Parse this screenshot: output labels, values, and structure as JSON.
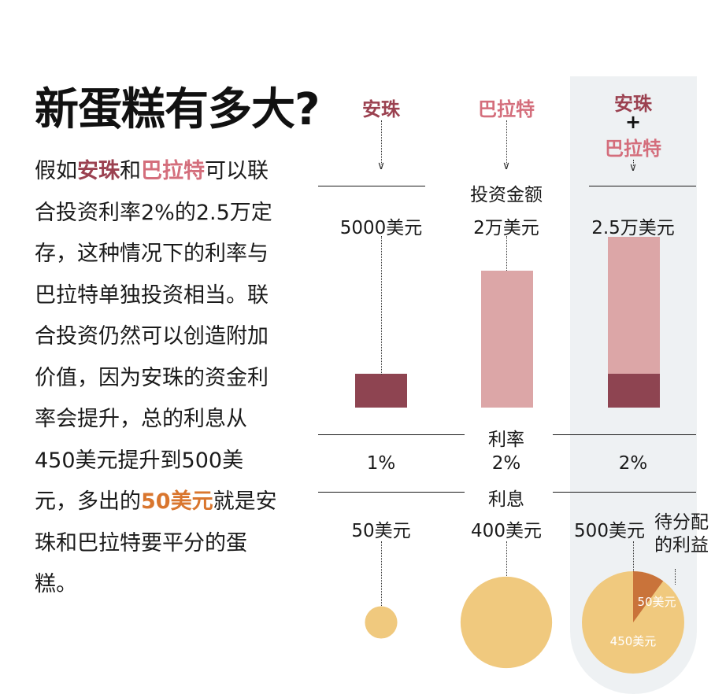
{
  "title": "新蛋糕有多大?",
  "paragraph": [
    {
      "text": "假如",
      "style": "plain"
    },
    {
      "text": "安珠",
      "style": "anzhu"
    },
    {
      "text": "和",
      "style": "plain"
    },
    {
      "text": "巴拉特",
      "style": "balate"
    },
    {
      "text": "可以联合投资利率2%的2.5万定存，这种情况下的利率与巴拉特单独投资相当。联合投资仍然可以创造附加价值，因为安珠的资金利率会提升，总的利息从450美元提升到500美元，多出的",
      "style": "plain"
    },
    {
      "text": "50美元",
      "style": "cake"
    },
    {
      "text": "就是安珠和巴拉特要平分的蛋糕。",
      "style": "plain"
    }
  ],
  "columns": {
    "anzhu": {
      "name": "安珠",
      "amount": "5000美元",
      "rate": "1%",
      "interest": "50美元"
    },
    "balate": {
      "name": "巴拉特",
      "amount": "2万美元",
      "rate": "2%",
      "interest": "400美元"
    },
    "combined": {
      "name_a": "安珠",
      "plus": "+",
      "name_b": "巴拉特",
      "amount": "2.5万美元",
      "rate": "2%",
      "interest": "500美元",
      "note_line1": "待分配",
      "note_line2": "的利益",
      "slice_small": "50美元",
      "slice_large": "450美元"
    }
  },
  "row_labels": {
    "amount": "投资金额",
    "rate": "利率",
    "interest": "利息"
  },
  "chart_data": {
    "type": "bar",
    "categories": [
      "安珠",
      "巴拉特",
      "安珠+巴拉特"
    ],
    "series": [
      {
        "values": [
          5000,
          20000,
          25000
        ]
      }
    ],
    "rates": [
      "1%",
      "2%",
      "2%"
    ],
    "interest": [
      50,
      400,
      500
    ],
    "combined_split": {
      "anzhu_amount": 5000,
      "extra_interest": 50,
      "base_interest": 450
    }
  },
  "colors": {
    "anzhu": "#9b4150",
    "balate": "#d46e7c",
    "bar_light": "#dca6a7",
    "bar_dark": "#8e4451",
    "pie": "#f0c97e",
    "pie_slice": "#c9733a",
    "panel": "#eef1f3",
    "cake_text": "#d9762e"
  }
}
